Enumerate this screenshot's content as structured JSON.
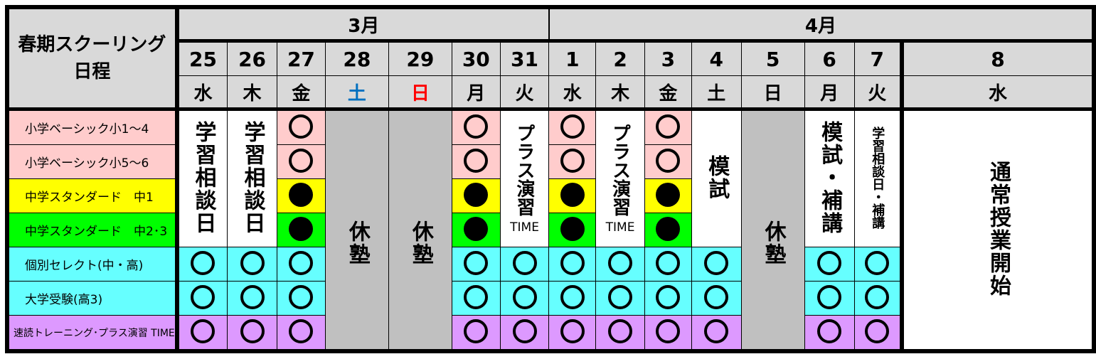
{
  "title_lines": [
    "春期スクーリング",
    "日程"
  ],
  "months": [
    {
      "label": "3月",
      "span": 7
    },
    {
      "label": "4月",
      "span": 8
    }
  ],
  "colors": {
    "pink": "#ffcccc",
    "yellow": "#ffff00",
    "green": "#00ff00",
    "cyan": "#66ffff",
    "purple": "#dd99ff",
    "closed": "#c0c0c0",
    "header": "#d9d9d9",
    "saturday": "#0070c0",
    "sunday": "#ff0000"
  },
  "rows": [
    {
      "label": "小学ベーシック小1～4",
      "color": "pink"
    },
    {
      "label": "小学ベーシック小5～6",
      "color": "pink"
    },
    {
      "label": "中学スタンダード　中1",
      "color": "yellow"
    },
    {
      "label": "中学スタンダード　中2･3",
      "color": "green"
    },
    {
      "label": "個別セレクト(中・高)",
      "color": "cyan"
    },
    {
      "label": "大学受験(高3)",
      "color": "cyan"
    },
    {
      "label": "速読トレーニング･プラス演習 TIME",
      "color": "purple"
    }
  ],
  "legend_marks": {
    "open-circle": "○",
    "filled-circle": "●"
  },
  "days": [
    {
      "date": "25",
      "weekday": "水",
      "upper": {
        "text": "学習相談日",
        "size": "big"
      },
      "lower": "circle"
    },
    {
      "date": "26",
      "weekday": "木",
      "upper": {
        "text": "学習相談日",
        "size": "big"
      },
      "lower": "circle"
    },
    {
      "date": "27",
      "weekday": "金",
      "cells": [
        "circle",
        "circle",
        "dot",
        "dot",
        "circle",
        "circle",
        "circle"
      ]
    },
    {
      "date": "28",
      "weekday": "土",
      "weekday_color": "saturday",
      "full": {
        "text": "休塾",
        "bg": "closed"
      }
    },
    {
      "date": "29",
      "weekday": "日",
      "weekday_color": "sunday",
      "full": {
        "text": "休塾",
        "bg": "closed"
      }
    },
    {
      "date": "30",
      "weekday": "月",
      "cells": [
        "circle",
        "circle",
        "dot",
        "dot",
        "circle",
        "circle",
        "circle"
      ]
    },
    {
      "date": "31",
      "weekday": "火",
      "upper": {
        "text": "プラス演習",
        "sub": "TIME",
        "size": "mid"
      },
      "lower": "circle"
    },
    {
      "date": "1",
      "weekday": "水",
      "cells": [
        "circle",
        "circle",
        "dot",
        "dot",
        "circle",
        "circle",
        "circle"
      ]
    },
    {
      "date": "2",
      "weekday": "木",
      "upper": {
        "text": "プラス演習",
        "sub": "TIME",
        "size": "mid"
      },
      "lower": "circle"
    },
    {
      "date": "3",
      "weekday": "金",
      "cells": [
        "circle",
        "circle",
        "dot",
        "dot",
        "circle",
        "circle",
        "circle"
      ]
    },
    {
      "date": "4",
      "weekday": "土",
      "upper": {
        "text": "模試",
        "size": "big"
      },
      "lower": "circle"
    },
    {
      "date": "5",
      "weekday": "日",
      "full": {
        "text": "休塾",
        "bg": "closed"
      }
    },
    {
      "date": "6",
      "weekday": "月",
      "upper": {
        "text": "模試・補講",
        "size": "big"
      },
      "lower": "circle"
    },
    {
      "date": "7",
      "weekday": "火",
      "upper": {
        "text": "学習相談日・補講",
        "size": "sm"
      },
      "lower": "circle"
    },
    {
      "date": "8",
      "weekday": "水",
      "full": {
        "text": "通常授業開始",
        "bg": "white",
        "thick_left": true
      }
    }
  ]
}
